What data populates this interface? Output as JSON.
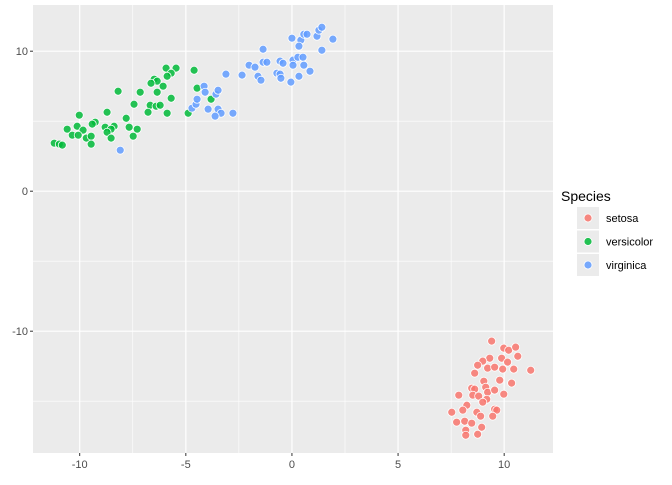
{
  "chart_data": {
    "type": "scatter",
    "xlim": [
      -12.2,
      12.3
    ],
    "ylim": [
      -18.7,
      13.3
    ],
    "x_ticks": [
      -10,
      -5,
      0,
      5,
      10
    ],
    "y_ticks": [
      -10,
      0,
      10
    ],
    "x_tick_labels": [
      "-10",
      "-5",
      "0",
      "5",
      "10"
    ],
    "y_tick_labels": [
      "-10",
      "0",
      "10"
    ],
    "grid": true,
    "legend_title": "Species",
    "legend_placement": "right",
    "series": [
      {
        "name": "setosa",
        "color": "#F8766D",
        "points": [
          [
            9.41,
            -10.71
          ],
          [
            9.98,
            -11.21
          ],
          [
            10.21,
            -11.36
          ],
          [
            10.54,
            -11.14
          ],
          [
            10.64,
            -11.79
          ],
          [
            9.32,
            -11.93
          ],
          [
            8.99,
            -12.14
          ],
          [
            8.75,
            -12.43
          ],
          [
            9.88,
            -11.93
          ],
          [
            10.16,
            -12.21
          ],
          [
            9.22,
            -12.64
          ],
          [
            9.55,
            -12.57
          ],
          [
            9.93,
            -12.71
          ],
          [
            10.45,
            -12.71
          ],
          [
            11.25,
            -12.79
          ],
          [
            8.61,
            -13.0
          ],
          [
            9.04,
            -13.57
          ],
          [
            9.79,
            -13.5
          ],
          [
            10.35,
            -13.71
          ],
          [
            8.47,
            -14.07
          ],
          [
            8.61,
            -14.14
          ],
          [
            9.13,
            -14.0
          ],
          [
            9.22,
            -14.36
          ],
          [
            9.55,
            -14.21
          ],
          [
            9.98,
            -14.5
          ],
          [
            7.86,
            -14.57
          ],
          [
            8.52,
            -14.57
          ],
          [
            8.8,
            -14.64
          ],
          [
            9.18,
            -14.86
          ],
          [
            8.99,
            -15.07
          ],
          [
            8.24,
            -15.29
          ],
          [
            8.05,
            -15.64
          ],
          [
            8.71,
            -15.79
          ],
          [
            9.55,
            -15.57
          ],
          [
            9.65,
            -15.64
          ],
          [
            7.53,
            -15.79
          ],
          [
            8.89,
            -16.07
          ],
          [
            9.46,
            -16.07
          ],
          [
            7.76,
            -16.5
          ],
          [
            8.14,
            -16.43
          ],
          [
            8.47,
            -16.57
          ],
          [
            8.94,
            -16.86
          ],
          [
            8.19,
            -17.07
          ],
          [
            8.19,
            -17.43
          ],
          [
            8.75,
            -17.36
          ]
        ]
      },
      {
        "name": "versicolor",
        "color": "#00BA38",
        "points": [
          [
            -4.61,
            8.64
          ],
          [
            -4.47,
            7.36
          ],
          [
            -3.81,
            6.57
          ],
          [
            -4.89,
            5.57
          ],
          [
            -5.46,
            8.79
          ],
          [
            -5.93,
            8.79
          ],
          [
            -5.69,
            8.43
          ],
          [
            -5.88,
            8.21
          ],
          [
            -6.49,
            8.0
          ],
          [
            -6.35,
            7.86
          ],
          [
            -6.64,
            7.71
          ],
          [
            -6.07,
            7.5
          ],
          [
            -6.35,
            7.07
          ],
          [
            -7.15,
            7.07
          ],
          [
            -8.19,
            7.14
          ],
          [
            -5.69,
            6.64
          ],
          [
            -7.44,
            6.21
          ],
          [
            -6.68,
            6.14
          ],
          [
            -6.4,
            6.07
          ],
          [
            -6.21,
            6.14
          ],
          [
            -6.78,
            5.64
          ],
          [
            -5.88,
            5.57
          ],
          [
            -7.81,
            5.21
          ],
          [
            -8.71,
            5.64
          ],
          [
            -10.02,
            5.43
          ],
          [
            -9.27,
            4.93
          ],
          [
            -9.41,
            4.79
          ],
          [
            -10.12,
            4.64
          ],
          [
            -10.59,
            4.43
          ],
          [
            -9.84,
            4.36
          ],
          [
            -8.8,
            4.57
          ],
          [
            -8.38,
            4.64
          ],
          [
            -8.52,
            4.43
          ],
          [
            -7.67,
            4.57
          ],
          [
            -7.29,
            4.43
          ],
          [
            -8.71,
            4.21
          ],
          [
            -10.35,
            4.0
          ],
          [
            -10.07,
            4.0
          ],
          [
            -9.69,
            3.79
          ],
          [
            -9.46,
            3.93
          ],
          [
            -8.52,
            3.79
          ],
          [
            -7.48,
            3.93
          ],
          [
            -9.46,
            3.36
          ],
          [
            -11.2,
            3.43
          ],
          [
            -10.96,
            3.36
          ],
          [
            -10.82,
            3.29
          ]
        ]
      },
      {
        "name": "virginica",
        "color": "#619CFF",
        "points": [
          [
            -8.09,
            2.93
          ],
          [
            -4.71,
            5.93
          ],
          [
            -4.52,
            6.21
          ],
          [
            -4.47,
            6.57
          ],
          [
            -4.14,
            7.5
          ],
          [
            -4.09,
            7.07
          ],
          [
            -3.58,
            6.93
          ],
          [
            -3.48,
            7.21
          ],
          [
            -3.95,
            5.86
          ],
          [
            -3.48,
            5.86
          ],
          [
            -3.34,
            5.57
          ],
          [
            -3.62,
            5.36
          ],
          [
            -2.78,
            5.57
          ],
          [
            -3.11,
            8.36
          ],
          [
            -2.35,
            8.29
          ],
          [
            -2.02,
            9.0
          ],
          [
            -1.74,
            8.86
          ],
          [
            -1.6,
            8.21
          ],
          [
            -1.46,
            7.93
          ],
          [
            -1.36,
            10.14
          ],
          [
            -1.36,
            9.21
          ],
          [
            -1.18,
            9.21
          ],
          [
            -0.71,
            8.43
          ],
          [
            -0.56,
            8.36
          ],
          [
            -0.52,
            8.07
          ],
          [
            -0.56,
            9.29
          ],
          [
            -0.42,
            9.14
          ],
          [
            0.05,
            9.36
          ],
          [
            0.28,
            9.57
          ],
          [
            0.52,
            9.57
          ],
          [
            0.05,
            9.0
          ],
          [
            0.56,
            9.0
          ],
          [
            -0.05,
            7.79
          ],
          [
            0.33,
            8.21
          ],
          [
            0.85,
            8.57
          ],
          [
            0.0,
            10.93
          ],
          [
            0.42,
            10.79
          ],
          [
            0.33,
            10.36
          ],
          [
            0.56,
            11.21
          ],
          [
            0.71,
            11.21
          ],
          [
            1.18,
            11.07
          ],
          [
            1.27,
            11.5
          ],
          [
            1.41,
            11.71
          ],
          [
            1.93,
            10.86
          ],
          [
            1.41,
            10.07
          ]
        ]
      }
    ]
  }
}
